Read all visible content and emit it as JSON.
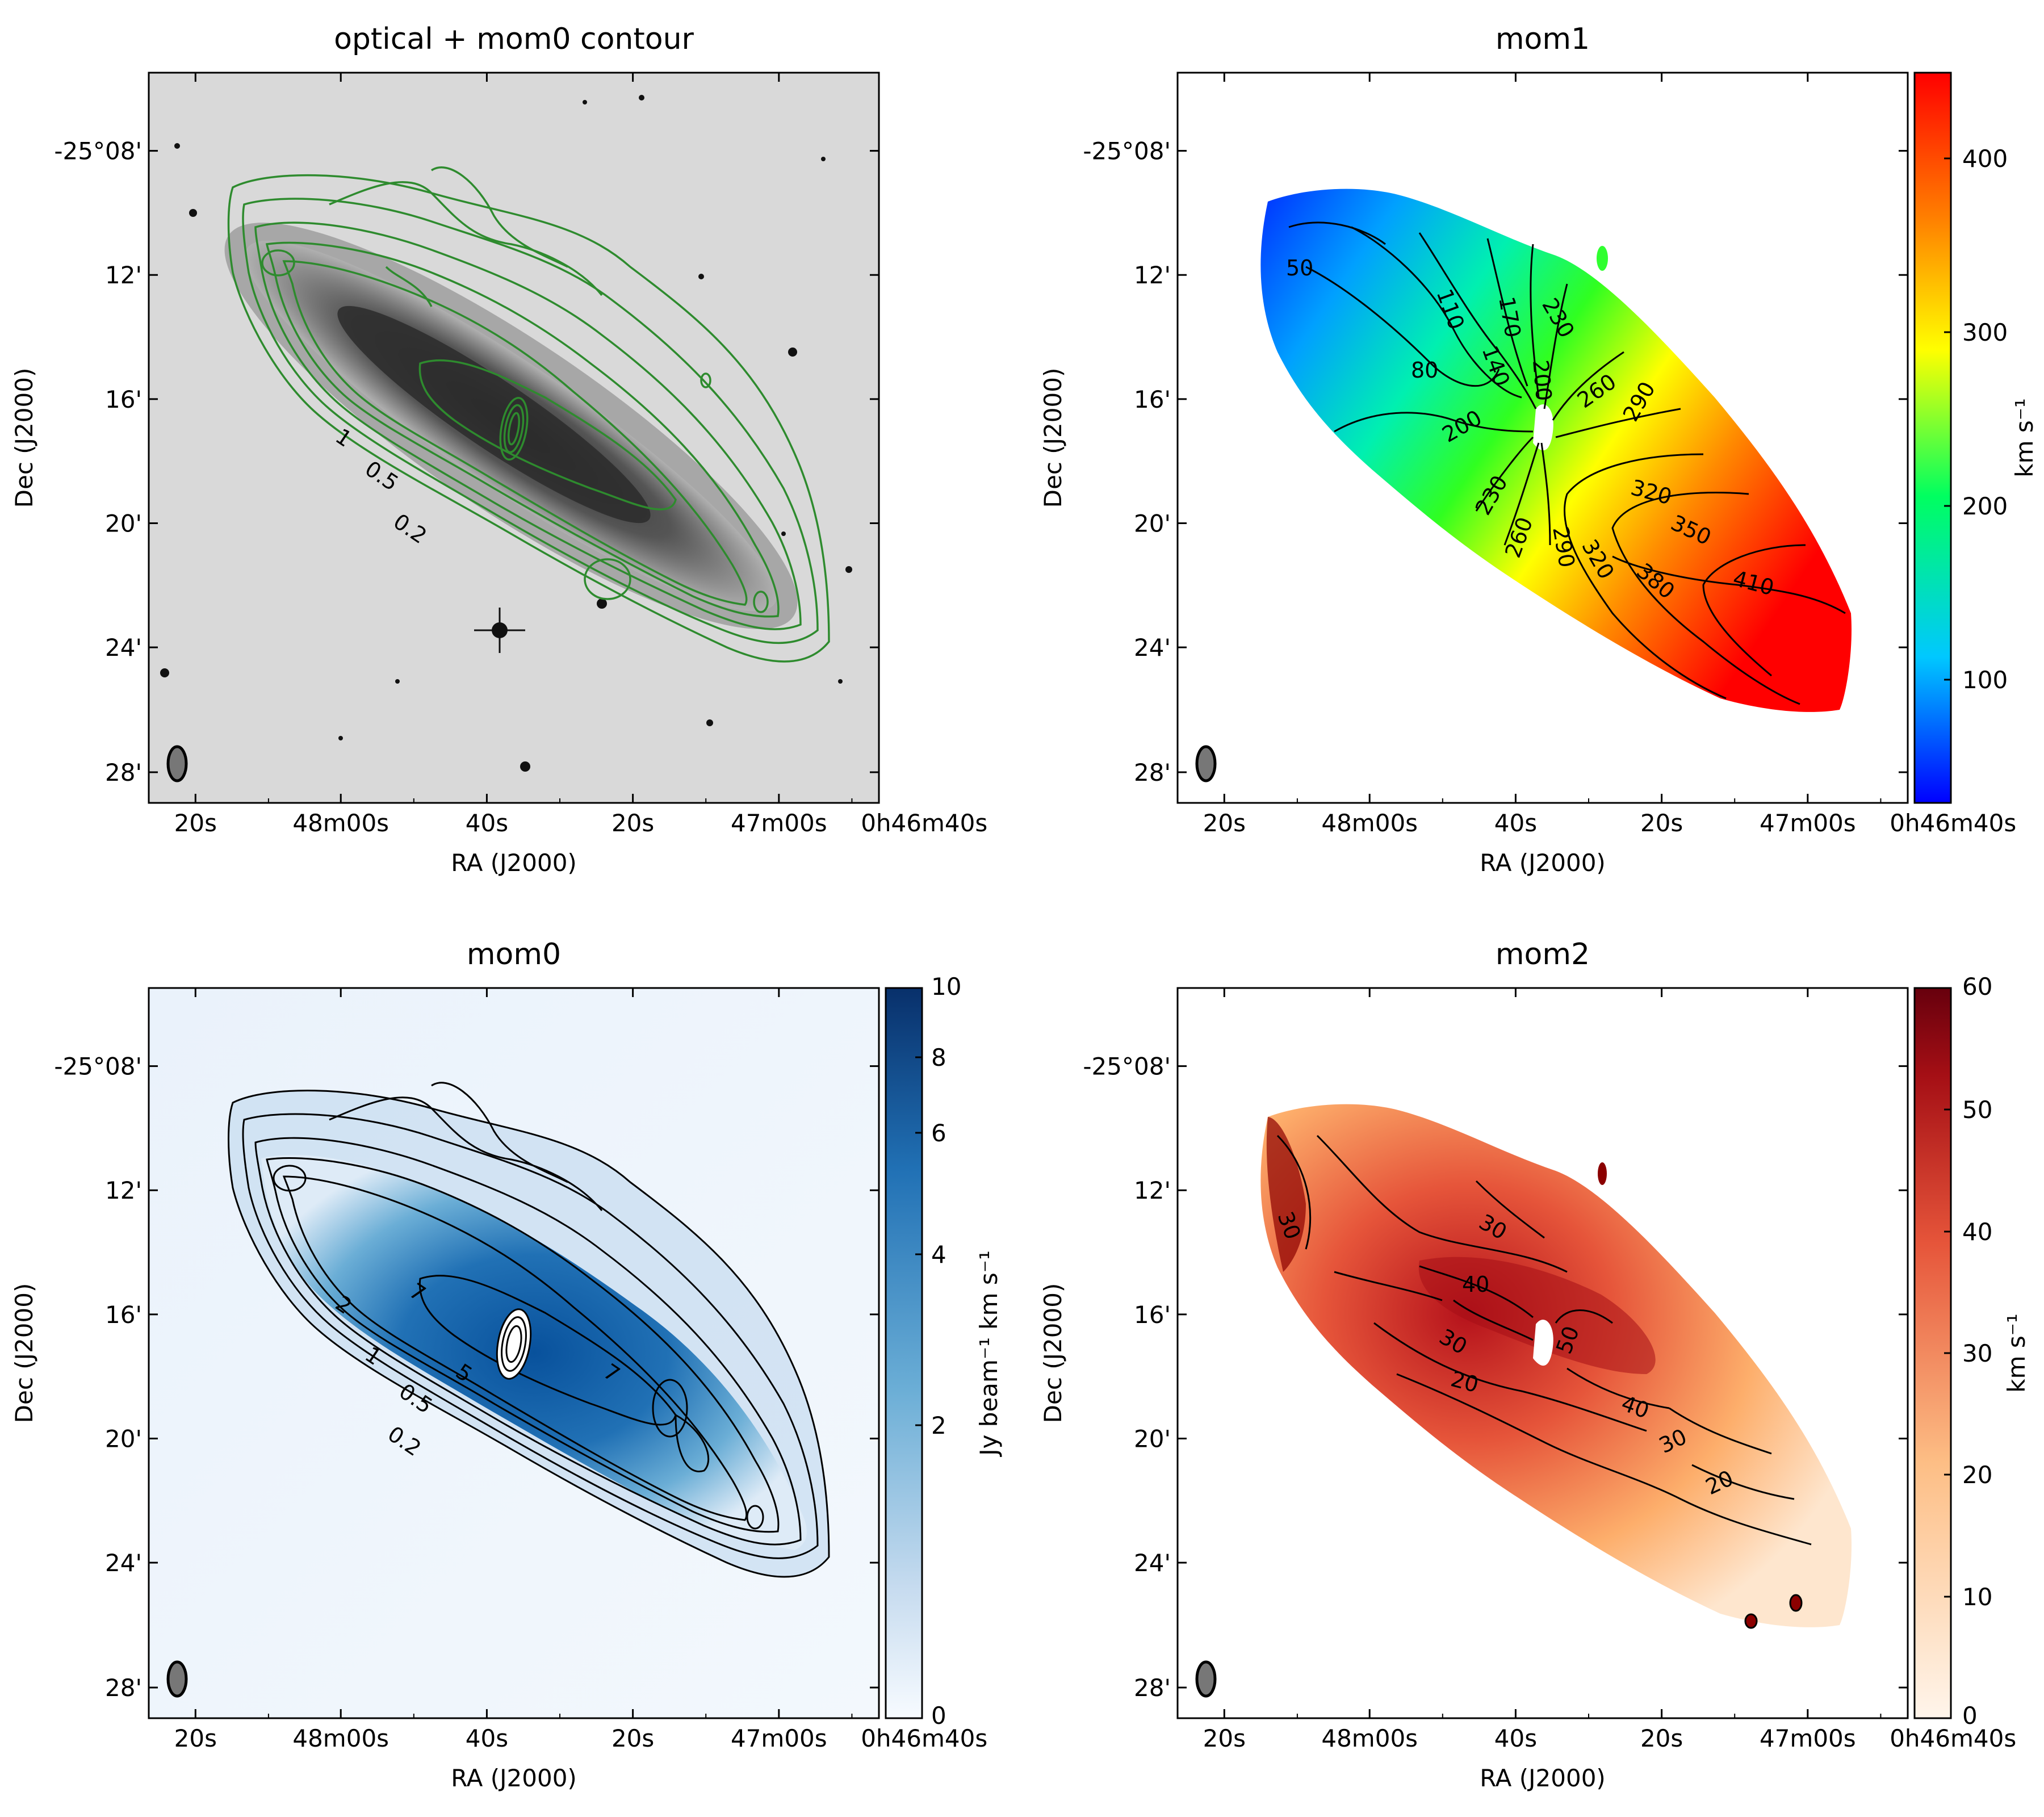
{
  "panels": {
    "optical": {
      "title": "optical + mom0 contour",
      "contour_labels": [
        "1",
        "0.5",
        "0.2"
      ]
    },
    "mom1": {
      "title": "mom1",
      "contour_labels": [
        "50",
        "80",
        "110",
        "140",
        "170",
        "200",
        "230",
        "200",
        "230",
        "260",
        "260",
        "290",
        "290",
        "320",
        "350",
        "380",
        "410",
        "320"
      ],
      "colorbar": {
        "ticks": [
          "100",
          "200",
          "300",
          "400"
        ],
        "label": "km s⁻¹"
      }
    },
    "mom0": {
      "title": "mom0",
      "contour_labels": [
        "0.2",
        "0.5",
        "1",
        "2",
        "5",
        "7",
        "7"
      ],
      "colorbar": {
        "ticks": [
          "0",
          "2",
          "4",
          "6",
          "8",
          "10"
        ],
        "label": "Jy beam⁻¹ km s⁻¹"
      }
    },
    "mom2": {
      "title": "mom2",
      "contour_labels": [
        "30",
        "40",
        "50",
        "30",
        "20",
        "30",
        "40",
        "30",
        "20"
      ],
      "colorbar": {
        "ticks": [
          "0",
          "10",
          "20",
          "30",
          "40",
          "50",
          "60"
        ],
        "label": "km s⁻¹"
      }
    }
  },
  "axes": {
    "ra_ticks": [
      "20s",
      "48m00s",
      "40s",
      "20s",
      "47m00s",
      "0h46m40s"
    ],
    "dec_ticks": [
      "-25°08'",
      "12'",
      "16'",
      "20'",
      "24'",
      "28'"
    ],
    "xlabel": "RA (J2000)",
    "ylabel": "Dec (J2000)"
  },
  "colors": {
    "optical_contour": "#2e8b2e",
    "mom1_colormap": [
      "#0000ff",
      "#00c8ff",
      "#00ff60",
      "#ffff00",
      "#ff8000",
      "#ff0000"
    ],
    "mom0_colormap": [
      "#f7fbff",
      "#c6dbef",
      "#6baed6",
      "#2171b5",
      "#08306b"
    ],
    "mom2_colormap": [
      "#fff5eb",
      "#fdbe85",
      "#e6553a",
      "#a50f15",
      "#67000d"
    ]
  }
}
